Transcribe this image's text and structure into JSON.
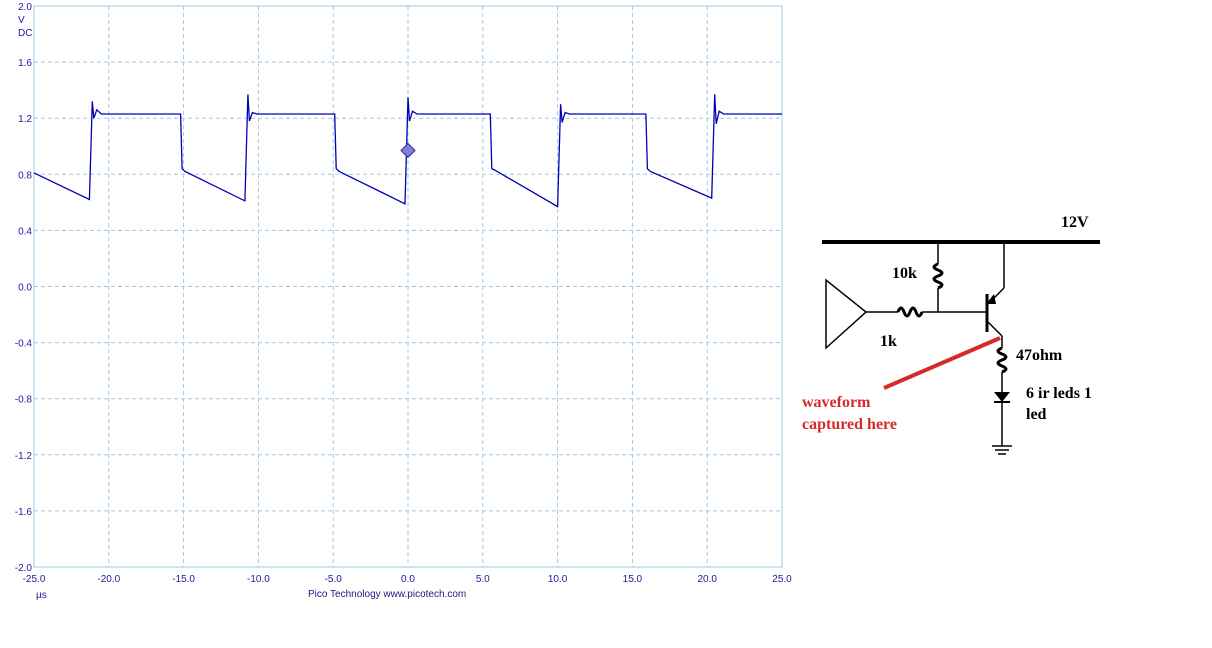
{
  "chart_data": {
    "type": "line",
    "xlabel": "µs",
    "ylabel_unit": "V",
    "ylabel_coupling": "DC",
    "xlim": [
      -25.0,
      25.0
    ],
    "ylim": [
      -2.0,
      2.0
    ],
    "x_ticks": [
      "-25.0",
      "-20.0",
      "-15.0",
      "-10.0",
      "-5.0",
      "0.0",
      "5.0",
      "10.0",
      "15.0",
      "20.0",
      "25.0"
    ],
    "y_ticks": [
      "2.0",
      "1.6",
      "1.2",
      "0.8",
      "0.4",
      "0.0",
      "-0.4",
      "-0.8",
      "-1.2",
      "-1.6",
      "-2.0"
    ],
    "grid": true,
    "footer": "Pico Technology  www.picotech.com",
    "trigger_marker": {
      "x": 0.0,
      "y": 0.97
    },
    "line_color": "#0000b4",
    "grid_color": "#9fc9e3",
    "series": [
      {
        "x": [
          -25.0,
          -21.3,
          -21.1,
          -21.0,
          -20.8,
          -20.5,
          -15.2,
          -15.1,
          -14.9,
          -10.9,
          -10.7,
          -10.6,
          -10.4,
          -10.1,
          -4.9,
          -4.8,
          -4.6,
          -0.2,
          0.0,
          0.1,
          0.3,
          0.6,
          5.5,
          5.6,
          5.8,
          10.0,
          10.2,
          10.3,
          10.5,
          10.8,
          15.9,
          16.0,
          16.2,
          20.3,
          20.5,
          20.6,
          20.8,
          21.1,
          25.0
        ],
        "y": [
          0.81,
          0.62,
          1.32,
          1.2,
          1.26,
          1.23,
          1.23,
          0.84,
          0.82,
          0.61,
          1.37,
          1.18,
          1.24,
          1.23,
          1.23,
          0.84,
          0.82,
          0.59,
          1.35,
          1.18,
          1.25,
          1.23,
          1.23,
          0.84,
          0.83,
          0.57,
          1.3,
          1.17,
          1.24,
          1.23,
          1.23,
          0.84,
          0.82,
          0.63,
          1.37,
          1.16,
          1.25,
          1.23,
          1.23
        ]
      }
    ]
  },
  "circuit": {
    "supply_label": "12V",
    "r_base_pullup_label": "10k",
    "r_base_label": "1k",
    "r_emitter_label": "47ohm",
    "led_label_line1": "6 ir leds 1",
    "led_label_line2": "led",
    "annotation_line1": "waveform",
    "annotation_line2": "captured here",
    "annotation_color": "#d62a2a"
  }
}
